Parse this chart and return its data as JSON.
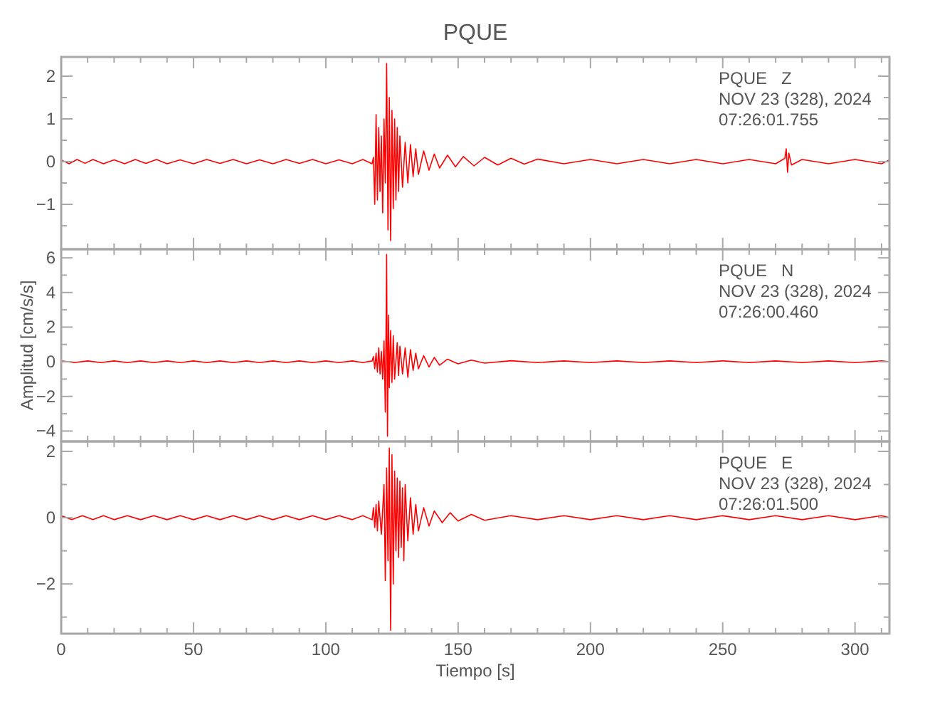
{
  "chart_data": [
    {
      "type": "line",
      "title": "PQUE",
      "annotations": [
        "PQUE   Z",
        "NOV 23 (328), 2024",
        "07:26:01.755"
      ],
      "xlim": [
        0,
        313
      ],
      "ylim": [
        -2.05,
        2.45
      ],
      "tick_labels": "y",
      "grid": false,
      "xticks": [
        0,
        {
          "value": 10,
          "label": null
        },
        {
          "value": 20,
          "label": null
        },
        {
          "value": 30,
          "label": null
        },
        {
          "value": 40,
          "label": null
        },
        50,
        {
          "value": 60,
          "label": null
        },
        {
          "value": 70,
          "label": null
        },
        {
          "value": 80,
          "label": null
        },
        {
          "value": 90,
          "label": null
        },
        100,
        {
          "value": 110,
          "label": null
        },
        {
          "value": 120,
          "label": null
        },
        {
          "value": 130,
          "label": null
        },
        {
          "value": 140,
          "label": null
        },
        150,
        {
          "value": 160,
          "label": null
        },
        {
          "value": 170,
          "label": null
        },
        {
          "value": 180,
          "label": null
        },
        {
          "value": 190,
          "label": null
        },
        200,
        {
          "value": 210,
          "label": null
        },
        {
          "value": 220,
          "label": null
        },
        {
          "value": 230,
          "label": null
        },
        {
          "value": 240,
          "label": null
        },
        250,
        {
          "value": 260,
          "label": null
        },
        {
          "value": 270,
          "label": null
        },
        {
          "value": 280,
          "label": null
        },
        {
          "value": 290,
          "label": null
        },
        300,
        {
          "value": 310,
          "label": null
        }
      ],
      "yticks": [
        {
          "value": -1.5,
          "label": null
        },
        -1,
        {
          "value": -0.5,
          "label": null
        },
        0,
        {
          "value": 0.5,
          "label": null
        },
        1,
        {
          "value": 1.5,
          "label": null
        },
        2
      ],
      "series": [
        {
          "color": "#ff0000",
          "x": [
            0,
            3,
            6,
            9,
            12,
            16,
            20,
            24,
            28,
            32,
            36,
            40,
            45,
            50,
            55,
            60,
            65,
            70,
            75,
            80,
            85,
            90,
            95,
            100,
            105,
            110,
            114,
            117.5,
            118,
            118.5,
            119,
            119.5,
            120,
            120.5,
            121,
            121.5,
            122,
            122.5,
            123,
            123.5,
            124,
            124.5,
            125,
            125.5,
            126,
            126.5,
            127,
            127.5,
            128,
            129,
            130,
            131,
            132,
            133,
            134,
            135,
            137,
            139,
            141,
            143,
            146,
            149,
            152,
            156,
            160,
            165,
            170,
            175,
            180,
            190,
            200,
            210,
            220,
            230,
            240,
            250,
            260,
            270,
            273.5,
            274,
            274.5,
            275,
            276,
            280,
            290,
            300,
            310,
            313
          ],
          "values": [
            0.04,
            -0.05,
            0.05,
            -0.04,
            0.05,
            -0.05,
            0.04,
            -0.05,
            0.05,
            -0.04,
            0.05,
            -0.05,
            0.04,
            -0.05,
            0.05,
            -0.04,
            0.05,
            -0.05,
            0.04,
            -0.05,
            0.05,
            -0.04,
            0.05,
            -0.05,
            0.04,
            -0.05,
            0.05,
            -0.05,
            0.1,
            -1.0,
            1.1,
            -0.9,
            0.8,
            -0.7,
            0.6,
            -1.2,
            1.0,
            -0.5,
            2.3,
            -1.6,
            1.5,
            -1.85,
            1.2,
            -1.1,
            1.0,
            -0.9,
            0.8,
            -0.7,
            0.6,
            -0.6,
            0.45,
            -0.5,
            0.4,
            -0.35,
            0.3,
            -0.3,
            0.25,
            -0.2,
            0.18,
            -0.15,
            0.15,
            -0.12,
            0.12,
            -0.1,
            0.1,
            -0.08,
            0.08,
            -0.06,
            0.06,
            -0.05,
            0.05,
            -0.05,
            0.05,
            -0.05,
            0.05,
            -0.05,
            0.05,
            -0.05,
            0.08,
            0.3,
            -0.25,
            0.2,
            -0.08,
            0.05,
            -0.05,
            0.05,
            -0.05,
            0.04
          ]
        }
      ]
    },
    {
      "type": "line",
      "ylabel": "Amplitud [cm/s/s]",
      "annotations": [
        "PQUE   N",
        "NOV 23 (328), 2024",
        "07:26:00.460"
      ],
      "xlim": [
        0,
        313
      ],
      "ylim": [
        -4.6,
        6.5
      ],
      "tick_labels": "y",
      "grid": false,
      "xticks": [
        0,
        {
          "value": 10,
          "label": null
        },
        {
          "value": 20,
          "label": null
        },
        {
          "value": 30,
          "label": null
        },
        {
          "value": 40,
          "label": null
        },
        50,
        {
          "value": 60,
          "label": null
        },
        {
          "value": 70,
          "label": null
        },
        {
          "value": 80,
          "label": null
        },
        {
          "value": 90,
          "label": null
        },
        100,
        {
          "value": 110,
          "label": null
        },
        {
          "value": 120,
          "label": null
        },
        {
          "value": 130,
          "label": null
        },
        {
          "value": 140,
          "label": null
        },
        150,
        {
          "value": 160,
          "label": null
        },
        {
          "value": 170,
          "label": null
        },
        {
          "value": 180,
          "label": null
        },
        {
          "value": 190,
          "label": null
        },
        200,
        {
          "value": 210,
          "label": null
        },
        {
          "value": 220,
          "label": null
        },
        {
          "value": 230,
          "label": null
        },
        {
          "value": 240,
          "label": null
        },
        250,
        {
          "value": 260,
          "label": null
        },
        {
          "value": 270,
          "label": null
        },
        {
          "value": 280,
          "label": null
        },
        {
          "value": 290,
          "label": null
        },
        300,
        {
          "value": 310,
          "label": null
        }
      ],
      "yticks": [
        -4,
        {
          "value": -3,
          "label": null
        },
        -2,
        {
          "value": -1,
          "label": null
        },
        0,
        {
          "value": 1,
          "label": null
        },
        2,
        {
          "value": 3,
          "label": null
        },
        4,
        {
          "value": 5,
          "label": null
        },
        6
      ],
      "series": [
        {
          "color": "#ff0000",
          "x": [
            0,
            5,
            10,
            15,
            20,
            25,
            30,
            35,
            40,
            45,
            50,
            55,
            60,
            65,
            70,
            75,
            80,
            85,
            90,
            95,
            100,
            105,
            110,
            114,
            117.5,
            118,
            118.5,
            119,
            119.5,
            120,
            120.5,
            121,
            121.5,
            122,
            122.5,
            123,
            123.3,
            123.7,
            124,
            124.5,
            125,
            125.5,
            126,
            127,
            127.5,
            128,
            129,
            130,
            131,
            132,
            133,
            134,
            135,
            137,
            139,
            141,
            143,
            146,
            150,
            155,
            160,
            170,
            180,
            190,
            200,
            210,
            220,
            230,
            240,
            250,
            260,
            270,
            280,
            290,
            300,
            310,
            313
          ],
          "values": [
            0.05,
            -0.05,
            0.05,
            -0.05,
            0.05,
            -0.05,
            0.05,
            -0.05,
            0.05,
            -0.05,
            0.05,
            -0.05,
            0.05,
            -0.05,
            0.05,
            -0.05,
            0.05,
            -0.05,
            0.05,
            -0.05,
            0.05,
            -0.05,
            0.05,
            -0.05,
            0.05,
            0.3,
            -0.4,
            0.5,
            -0.6,
            0.8,
            -0.7,
            0.6,
            -1.0,
            1.2,
            -2.9,
            6.2,
            -4.3,
            2.7,
            -1.5,
            1.8,
            -1.2,
            1.5,
            -1.0,
            1.1,
            -0.8,
            0.9,
            -0.7,
            0.8,
            -0.9,
            0.7,
            -0.5,
            0.5,
            -0.4,
            0.35,
            -0.3,
            0.25,
            -0.2,
            0.15,
            -0.12,
            0.1,
            -0.08,
            0.06,
            -0.05,
            0.05,
            -0.05,
            0.05,
            -0.05,
            0.05,
            -0.05,
            0.05,
            -0.05,
            0.05,
            -0.05,
            0.05,
            -0.05,
            0.05,
            0
          ]
        }
      ]
    },
    {
      "type": "line",
      "xlabel": "Tiempo [s]",
      "annotations": [
        "PQUE   E",
        "NOV 23 (328), 2024",
        "07:26:01.500"
      ],
      "xlim": [
        0,
        313
      ],
      "ylim": [
        -3.5,
        2.3
      ],
      "grid": false,
      "xticks": [
        0,
        {
          "value": 10,
          "label": null
        },
        {
          "value": 20,
          "label": null
        },
        {
          "value": 30,
          "label": null
        },
        {
          "value": 40,
          "label": null
        },
        50,
        {
          "value": 60,
          "label": null
        },
        {
          "value": 70,
          "label": null
        },
        {
          "value": 80,
          "label": null
        },
        {
          "value": 90,
          "label": null
        },
        100,
        {
          "value": 110,
          "label": null
        },
        {
          "value": 120,
          "label": null
        },
        {
          "value": 130,
          "label": null
        },
        {
          "value": 140,
          "label": null
        },
        150,
        {
          "value": 160,
          "label": null
        },
        {
          "value": 170,
          "label": null
        },
        {
          "value": 180,
          "label": null
        },
        {
          "value": 190,
          "label": null
        },
        200,
        {
          "value": 210,
          "label": null
        },
        {
          "value": 220,
          "label": null
        },
        {
          "value": 230,
          "label": null
        },
        {
          "value": 240,
          "label": null
        },
        250,
        {
          "value": 260,
          "label": null
        },
        {
          "value": 270,
          "label": null
        },
        {
          "value": 280,
          "label": null
        },
        {
          "value": 290,
          "label": null
        },
        300,
        {
          "value": 310,
          "label": null
        }
      ],
      "yticks": [
        {
          "value": -3,
          "label": null
        },
        -2,
        {
          "value": -1,
          "label": null
        },
        0,
        {
          "value": 1,
          "label": null
        },
        2
      ],
      "series": [
        {
          "color": "#ff0000",
          "x": [
            0,
            4,
            8,
            12,
            16,
            20,
            25,
            30,
            35,
            40,
            45,
            50,
            55,
            60,
            65,
            70,
            75,
            80,
            85,
            90,
            95,
            100,
            105,
            110,
            114,
            117.5,
            118,
            118.5,
            119,
            119.5,
            120,
            121,
            122,
            122.5,
            123,
            123.5,
            124,
            124.5,
            125,
            125.5,
            126,
            126.5,
            127,
            127.5,
            128,
            128.5,
            129,
            129.5,
            130,
            131,
            132,
            133,
            134,
            135,
            137,
            139,
            141,
            144,
            147,
            150,
            155,
            160,
            170,
            180,
            190,
            200,
            210,
            220,
            230,
            240,
            250,
            260,
            270,
            280,
            290,
            300,
            310,
            313
          ],
          "values": [
            0.06,
            -0.06,
            0.06,
            -0.06,
            0.06,
            -0.06,
            0.06,
            -0.06,
            0.06,
            -0.06,
            0.06,
            -0.06,
            0.06,
            -0.06,
            0.06,
            -0.06,
            0.06,
            -0.06,
            0.06,
            -0.06,
            0.06,
            -0.06,
            0.06,
            -0.06,
            0.06,
            -0.06,
            0.3,
            -0.3,
            0.4,
            -0.4,
            0.5,
            -0.5,
            1.0,
            -1.9,
            1.5,
            -1.3,
            2.1,
            -3.4,
            1.9,
            -2.0,
            1.4,
            -1.0,
            1.2,
            -1.2,
            1.1,
            -0.9,
            0.9,
            -1.3,
            1.0,
            -0.7,
            0.6,
            -0.5,
            0.4,
            -0.4,
            0.3,
            -0.25,
            0.2,
            -0.15,
            0.15,
            -0.1,
            0.1,
            -0.08,
            0.06,
            -0.06,
            0.06,
            -0.06,
            0.06,
            -0.06,
            0.06,
            -0.06,
            0.06,
            -0.06,
            0.06,
            -0.06,
            0.06,
            -0.06,
            0.06,
            0
          ]
        }
      ]
    }
  ]
}
